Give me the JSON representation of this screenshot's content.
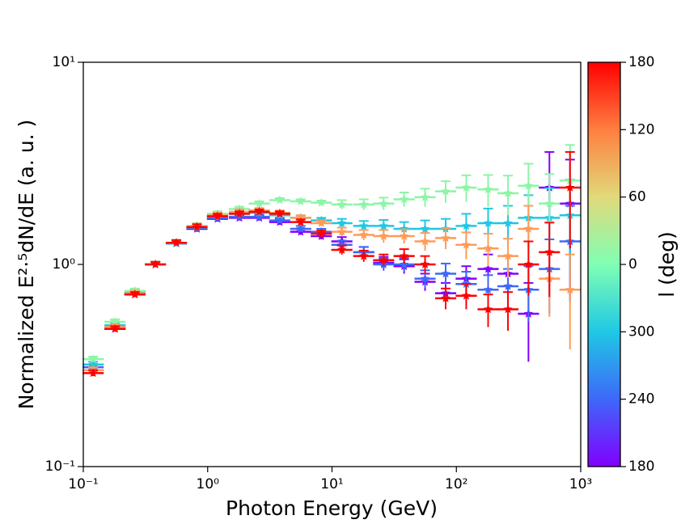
{
  "chart_data": {
    "type": "errorbar_scatter",
    "xlabel": "Photon Energy (GeV)",
    "ylabel": "Normalized E²·⁵dN/dE (a. u. )",
    "log_x": true,
    "log_y": true,
    "xlim": [
      0.1,
      1000
    ],
    "xticks": [
      {
        "value": 0.1,
        "label": "10⁻¹"
      },
      {
        "value": 1,
        "label": "10⁰"
      },
      {
        "value": 10,
        "label": "10¹"
      },
      {
        "value": 100,
        "label": "10²"
      },
      {
        "value": 1000,
        "label": "10³"
      }
    ],
    "ylim": [
      0.1,
      10
    ],
    "yticks": [
      {
        "value": 0.1,
        "label": "10⁻¹"
      },
      {
        "value": 1,
        "label": "10⁰"
      },
      {
        "value": 10,
        "label": "10¹"
      }
    ],
    "x": [
      0.12,
      0.18,
      0.26,
      0.38,
      0.56,
      0.82,
      1.2,
      1.8,
      2.6,
      3.8,
      5.6,
      8.2,
      12,
      18,
      26,
      38,
      56,
      82,
      120,
      180,
      260,
      380,
      560,
      820
    ],
    "series": [
      {
        "color": "#8000ff",
        "values": [
          0.3,
          0.48,
          0.71,
          1.0,
          1.27,
          1.5,
          1.68,
          1.7,
          1.7,
          1.62,
          1.45,
          1.38,
          1.3,
          1.15,
          1.02,
          0.98,
          0.82,
          0.72,
          0.85,
          0.95,
          0.9,
          0.57,
          2.4,
          2.0
        ],
        "errors": [
          0.01,
          0.015,
          0.02,
          0.03,
          0.04,
          0.05,
          0.05,
          0.05,
          0.05,
          0.05,
          0.05,
          0.05,
          0.065,
          0.07,
          0.07,
          0.08,
          0.08,
          0.09,
          0.13,
          0.17,
          0.2,
          0.24,
          1.2,
          1.3
        ]
      },
      {
        "color": "#3e68f9",
        "values": [
          0.31,
          0.49,
          0.72,
          1.0,
          1.27,
          1.52,
          1.7,
          1.72,
          1.72,
          1.65,
          1.5,
          1.45,
          1.25,
          1.15,
          1.0,
          1.0,
          0.85,
          0.9,
          0.8,
          0.75,
          0.78,
          0.75,
          0.95,
          1.3
        ],
        "errors": [
          0.01,
          0.015,
          0.02,
          0.03,
          0.04,
          0.05,
          0.05,
          0.05,
          0.05,
          0.05,
          0.05,
          0.05,
          0.06,
          0.07,
          0.07,
          0.08,
          0.085,
          0.11,
          0.12,
          0.135,
          0.17,
          0.23,
          0.38,
          0.65
        ]
      },
      {
        "color": "#1fc8e4",
        "values": [
          0.32,
          0.5,
          0.73,
          1.0,
          1.27,
          1.52,
          1.72,
          1.78,
          1.8,
          1.75,
          1.7,
          1.65,
          1.6,
          1.55,
          1.55,
          1.5,
          1.5,
          1.5,
          1.55,
          1.6,
          1.6,
          1.7,
          1.7,
          1.75
        ],
        "errors": [
          0.01,
          0.015,
          0.02,
          0.03,
          0.04,
          0.05,
          0.05,
          0.05,
          0.05,
          0.05,
          0.05,
          0.05,
          0.08,
          0.09,
          0.11,
          0.12,
          0.15,
          0.18,
          0.23,
          0.29,
          0.35,
          0.5,
          0.68,
          0.88
        ]
      },
      {
        "color": "#8cf5a6",
        "values": [
          0.34,
          0.52,
          0.74,
          1.0,
          1.28,
          1.55,
          1.78,
          1.88,
          2.0,
          2.08,
          2.05,
          2.02,
          1.98,
          1.98,
          2.0,
          2.1,
          2.15,
          2.3,
          2.4,
          2.35,
          2.25,
          2.45,
          2.0,
          2.6
        ],
        "errors": [
          0.01,
          0.015,
          0.02,
          0.03,
          0.04,
          0.05,
          0.05,
          0.05,
          0.05,
          0.05,
          0.05,
          0.05,
          0.1,
          0.12,
          0.14,
          0.17,
          0.22,
          0.28,
          0.36,
          0.42,
          0.5,
          0.7,
          0.8,
          1.3
        ]
      },
      {
        "color": "#ff9c58",
        "values": [
          0.3,
          0.49,
          0.72,
          1.0,
          1.28,
          1.54,
          1.75,
          1.82,
          1.85,
          1.8,
          1.7,
          1.6,
          1.45,
          1.4,
          1.38,
          1.38,
          1.3,
          1.35,
          1.25,
          1.2,
          1.1,
          1.5,
          0.85,
          0.75
        ],
        "errors": [
          0.01,
          0.015,
          0.02,
          0.03,
          0.04,
          0.05,
          0.05,
          0.05,
          0.05,
          0.05,
          0.05,
          0.05,
          0.07,
          0.08,
          0.1,
          0.11,
          0.13,
          0.16,
          0.19,
          0.22,
          0.24,
          0.45,
          0.3,
          0.37
        ]
      },
      {
        "color": "#ff0000",
        "values": [
          0.29,
          0.48,
          0.71,
          1.0,
          1.28,
          1.53,
          1.73,
          1.78,
          1.82,
          1.78,
          1.62,
          1.42,
          1.18,
          1.1,
          1.05,
          1.1,
          1.0,
          0.68,
          0.7,
          0.6,
          0.6,
          1.0,
          1.15,
          2.4
        ],
        "errors": [
          0.01,
          0.015,
          0.02,
          0.03,
          0.04,
          0.05,
          0.05,
          0.05,
          0.05,
          0.05,
          0.05,
          0.05,
          0.06,
          0.07,
          0.07,
          0.09,
          0.1,
          0.08,
          0.1,
          0.11,
          0.13,
          0.3,
          0.46,
          1.2
        ]
      }
    ],
    "colorbar": {
      "label": "l (deg)",
      "lim": [
        -180,
        180
      ],
      "ticks": [
        {
          "value": -180,
          "label": "180"
        },
        {
          "value": -120,
          "label": "240"
        },
        {
          "value": -60,
          "label": "300"
        },
        0,
        60,
        120,
        180
      ],
      "colors": [
        "#8000ff",
        "#3e68f9",
        "#1fc8e4",
        "#80ffb4",
        "#e1d97a",
        "#ff7f40",
        "#ff0000"
      ]
    }
  }
}
